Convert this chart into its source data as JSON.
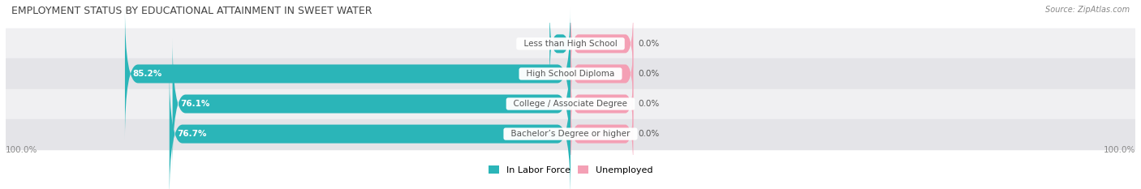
{
  "title": "EMPLOYMENT STATUS BY EDUCATIONAL ATTAINMENT IN SWEET WATER",
  "source": "Source: ZipAtlas.com",
  "categories": [
    "Less than High School",
    "High School Diploma",
    "College / Associate Degree",
    "Bachelor’s Degree or higher"
  ],
  "labor_force": [
    0.0,
    85.2,
    76.1,
    76.7
  ],
  "unemployed": [
    0.0,
    0.0,
    0.0,
    0.0
  ],
  "labor_force_color": "#2BB5B8",
  "unemployed_color": "#F4A0B5",
  "row_bg_even": "#F0F0F2",
  "row_bg_odd": "#E4E4E8",
  "label_color": "#555555",
  "title_color": "#444444",
  "source_color": "#888888",
  "axis_label_color": "#888888",
  "max_value": 100.0,
  "left_axis_label": "100.0%",
  "right_axis_label": "100.0%",
  "legend_labor": "In Labor Force",
  "legend_unemployed": "Unemployed",
  "nub_size": 4.0,
  "pink_nub_size": 12.0
}
